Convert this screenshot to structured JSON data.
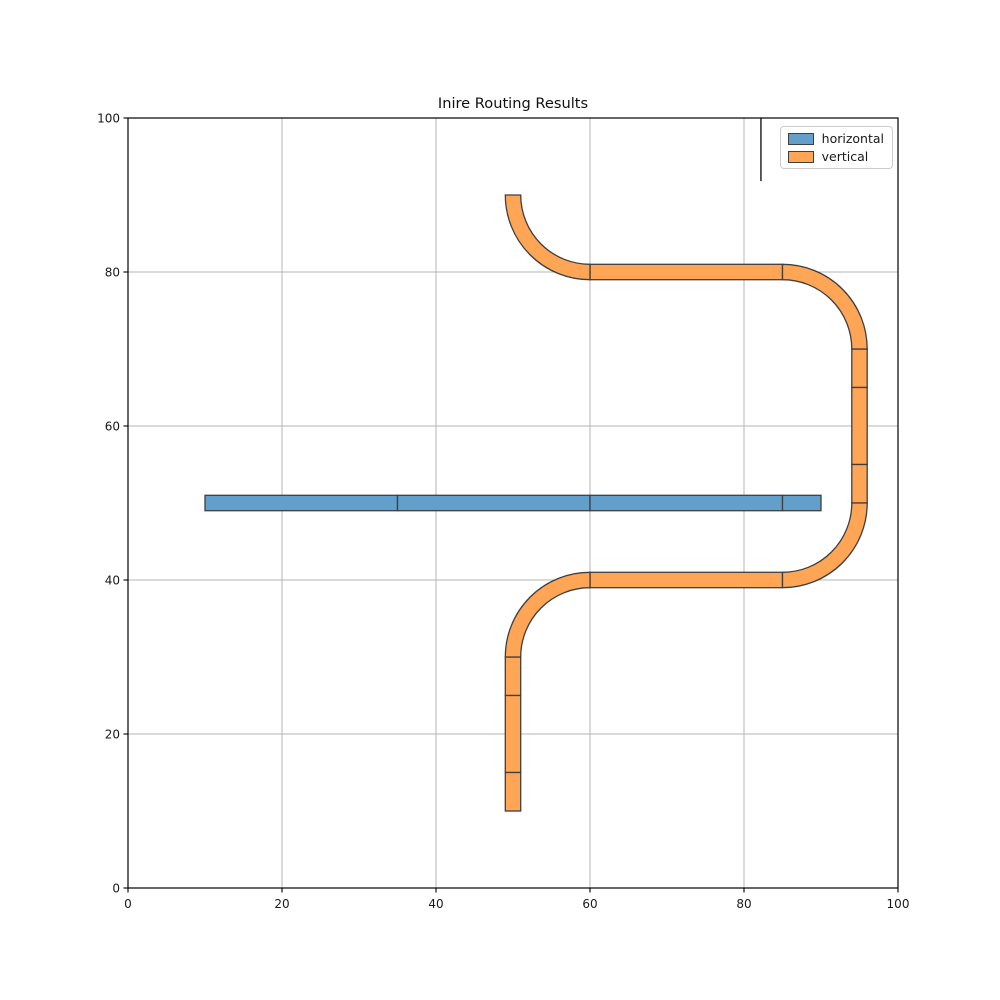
{
  "title": "Inire Routing Results",
  "legend": {
    "position": "upper right",
    "items": [
      {
        "label": "horizontal",
        "color": "#62A0CB"
      },
      {
        "label": "vertical",
        "color": "#FFA556"
      }
    ]
  },
  "colors": {
    "horizontal_fill": "#62A0CB",
    "vertical_fill": "#FFA556",
    "patch_edge": "#3f3f3f",
    "grid": "#b4b4b4",
    "spine": "#000000",
    "text": "#1a1a1a"
  },
  "chart_data": {
    "type": "routing-patch-plot",
    "title": "Inire Routing Results",
    "xlim": [
      0,
      100
    ],
    "ylim": [
      0,
      100
    ],
    "xticks": [
      0,
      20,
      40,
      60,
      80,
      100
    ],
    "yticks": [
      0,
      20,
      40,
      60,
      80,
      100
    ],
    "grid": true,
    "legend_position": "upper right",
    "tube_half_width": 1,
    "corner_radius": {
      "inner": 9,
      "outer": 11
    },
    "series": [
      {
        "name": "horizontal",
        "fill": "#62A0CB",
        "edge": "#3f3f3f",
        "hrects": [
          {
            "y": 50,
            "x1": 10,
            "x2": 35
          },
          {
            "y": 50,
            "x1": 35,
            "x2": 60
          },
          {
            "y": 50,
            "x1": 60,
            "x2": 85
          },
          {
            "y": 50,
            "x1": 85,
            "x2": 90
          }
        ],
        "vrects": [],
        "corners": []
      },
      {
        "name": "vertical",
        "fill": "#FFA556",
        "edge": "#3f3f3f",
        "hrects": [
          {
            "y": 80,
            "x1": 60,
            "x2": 85
          },
          {
            "y": 40,
            "x1": 60,
            "x2": 85
          }
        ],
        "vrects": [
          {
            "x": 50,
            "y1": 25,
            "y2": 30
          },
          {
            "x": 50,
            "y1": 15,
            "y2": 25
          },
          {
            "x": 50,
            "y1": 10,
            "y2": 15
          },
          {
            "x": 95,
            "y1": 65,
            "y2": 70
          },
          {
            "x": 95,
            "y1": 55,
            "y2": 65
          },
          {
            "x": 95,
            "y1": 50,
            "y2": 55
          }
        ],
        "corners": [
          {
            "cx": 60,
            "cy": 90,
            "a0": 180,
            "a1": 270
          },
          {
            "cx": 85,
            "cy": 70,
            "a0": 90,
            "a1": 0
          },
          {
            "cx": 85,
            "cy": 50,
            "a0": 0,
            "a1": -90
          },
          {
            "cx": 60,
            "cy": 30,
            "a0": 90,
            "a1": 180
          }
        ]
      }
    ],
    "artifact_line": {
      "x": 82.2,
      "y_from": 91.8,
      "y_to": 100
    }
  }
}
